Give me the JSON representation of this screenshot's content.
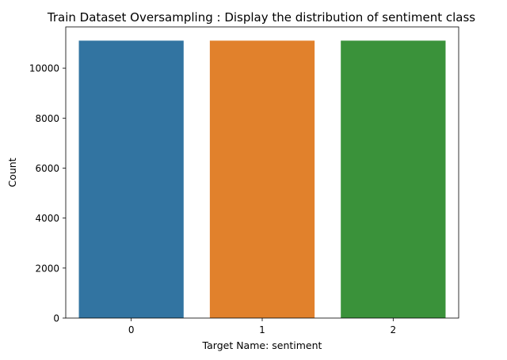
{
  "chart_data": {
    "type": "bar",
    "title": "Train Dataset Oversampling : Display the distribution of sentiment class",
    "xlabel": "Target Name: sentiment",
    "ylabel": "Count",
    "categories": [
      "0",
      "1",
      "2"
    ],
    "values": [
      11100,
      11100,
      11100
    ],
    "colors": [
      "#3274a1",
      "#e1812c",
      "#3a923a"
    ],
    "ylim": [
      0,
      11650
    ],
    "yticks": [
      0,
      2000,
      4000,
      6000,
      8000,
      10000
    ],
    "grid": false,
    "legend": "none"
  }
}
